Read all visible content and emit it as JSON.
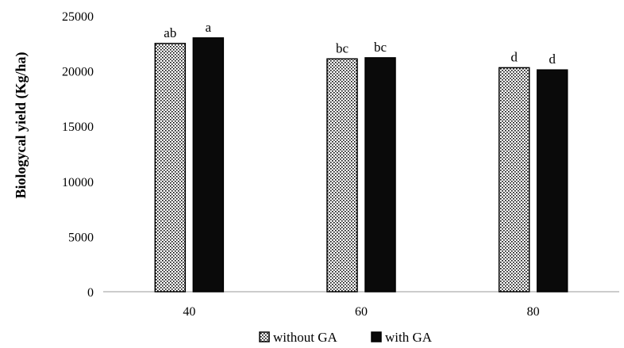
{
  "chart_data": {
    "type": "bar",
    "title": "",
    "xlabel": "",
    "ylabel": "Biologycal yield (Kg/ha)",
    "ylim": [
      0,
      25000
    ],
    "yticks": [
      "0",
      "5000",
      "10000",
      "15000",
      "20000",
      "25000"
    ],
    "categories": [
      "40",
      "60",
      "80"
    ],
    "series": [
      {
        "name": "without GA",
        "values": [
          22500,
          21100,
          20300
        ],
        "labels": [
          "ab",
          "bc",
          "d"
        ],
        "fill": "dotted",
        "color": "#000000"
      },
      {
        "name": "with GA",
        "values": [
          23000,
          21200,
          20100
        ],
        "labels": [
          "a",
          "bc",
          "d"
        ],
        "fill": "solid",
        "color": "#0a0a0a"
      }
    ],
    "grid": false,
    "legend": "bottom"
  }
}
